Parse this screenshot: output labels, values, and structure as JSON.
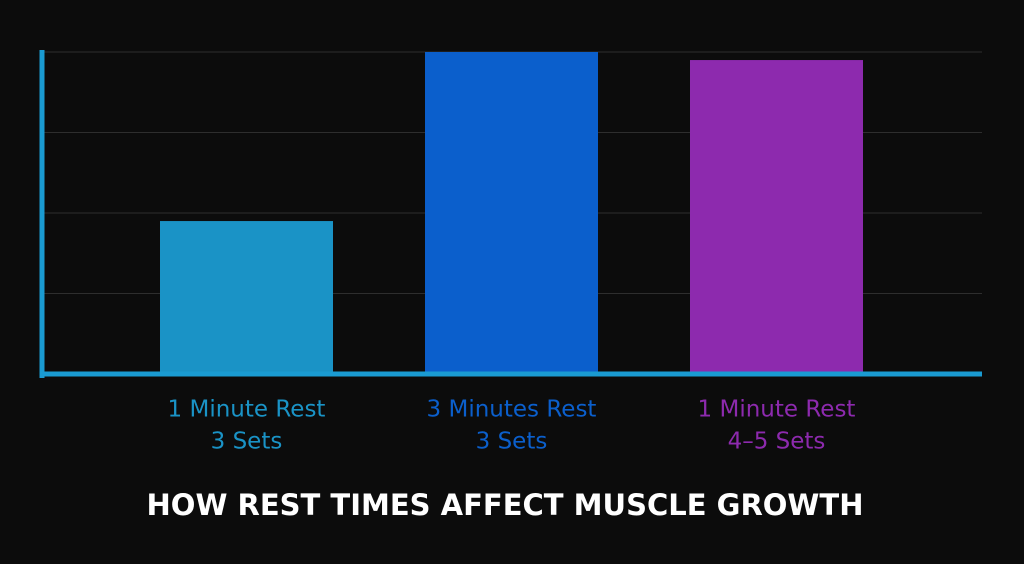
{
  "chart_data": {
    "type": "bar",
    "title": "HOW REST TIMES AFFECT MUSCLE GROWTH",
    "categories": [
      [
        "1 Minute Rest",
        "3 Sets"
      ],
      [
        "3 Minutes Rest",
        "3 Sets"
      ],
      [
        "1 Minute Rest",
        "4–5 Sets"
      ]
    ],
    "values": [
      1.9,
      4,
      3.9
    ],
    "colors": [
      "#1a93c6",
      "#0b5fcc",
      "#8d2aae"
    ],
    "axis_color": "#1a9bd2",
    "ylim": [
      0,
      4
    ],
    "yticks": [
      0,
      1,
      2,
      3,
      4
    ],
    "grid": true
  }
}
